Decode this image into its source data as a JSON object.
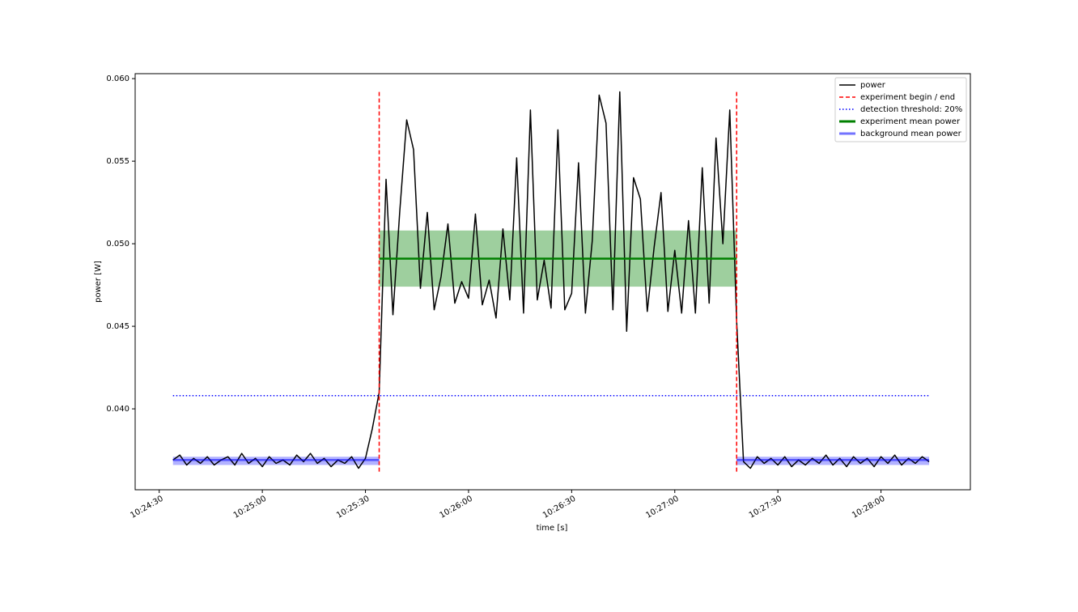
{
  "chart_data": {
    "type": "line",
    "x_label": "time [s]",
    "y_label": "power [W]",
    "xlim": [
      "10:24:23",
      "10:28:26"
    ],
    "ylim": [
      0.0351,
      0.0603
    ],
    "xticks": [
      "10:24:30",
      "10:25:00",
      "10:25:30",
      "10:26:00",
      "10:26:30",
      "10:27:00",
      "10:27:30",
      "10:28:00"
    ],
    "yticks": [
      {
        "value": 0.04,
        "label": "0.040"
      },
      0.045,
      {
        "value": 0.05,
        "label": "0.050"
      },
      0.055,
      {
        "value": 0.06,
        "label": "0.060"
      }
    ],
    "x": [
      "10:24:34",
      "10:24:36",
      "10:24:38",
      "10:24:40",
      "10:24:42",
      "10:24:44",
      "10:24:46",
      "10:24:48",
      "10:24:50",
      "10:24:52",
      "10:24:54",
      "10:24:56",
      "10:24:58",
      "10:25:00",
      "10:25:02",
      "10:25:04",
      "10:25:06",
      "10:25:08",
      "10:25:10",
      "10:25:12",
      "10:25:14",
      "10:25:16",
      "10:25:18",
      "10:25:20",
      "10:25:22",
      "10:25:24",
      "10:25:26",
      "10:25:28",
      "10:25:30",
      "10:25:32",
      "10:25:34",
      "10:25:36",
      "10:25:38",
      "10:25:40",
      "10:25:42",
      "10:25:44",
      "10:25:46",
      "10:25:48",
      "10:25:50",
      "10:25:52",
      "10:25:54",
      "10:25:56",
      "10:25:58",
      "10:26:00",
      "10:26:02",
      "10:26:04",
      "10:26:06",
      "10:26:08",
      "10:26:10",
      "10:26:12",
      "10:26:14",
      "10:26:16",
      "10:26:18",
      "10:26:20",
      "10:26:22",
      "10:26:24",
      "10:26:26",
      "10:26:28",
      "10:26:30",
      "10:26:32",
      "10:26:34",
      "10:26:36",
      "10:26:38",
      "10:26:40",
      "10:26:42",
      "10:26:44",
      "10:26:46",
      "10:26:48",
      "10:26:50",
      "10:26:52",
      "10:26:54",
      "10:26:56",
      "10:26:58",
      "10:27:00",
      "10:27:02",
      "10:27:04",
      "10:27:06",
      "10:27:08",
      "10:27:10",
      "10:27:12",
      "10:27:14",
      "10:27:16",
      "10:27:18",
      "10:27:20",
      "10:27:22",
      "10:27:24",
      "10:27:26",
      "10:27:28",
      "10:27:30",
      "10:27:32",
      "10:27:34",
      "10:27:36",
      "10:27:38",
      "10:27:40",
      "10:27:42",
      "10:27:44",
      "10:27:46",
      "10:27:48",
      "10:27:50",
      "10:27:52",
      "10:27:54",
      "10:27:56",
      "10:27:58",
      "10:28:00",
      "10:28:02",
      "10:28:04",
      "10:28:06",
      "10:28:08",
      "10:28:10",
      "10:28:12",
      "10:28:14"
    ],
    "series": [
      {
        "name": "power",
        "color": "#000000",
        "values": [
          0.0369,
          0.0372,
          0.0366,
          0.037,
          0.0367,
          0.0371,
          0.0366,
          0.0369,
          0.0371,
          0.0366,
          0.0373,
          0.0367,
          0.037,
          0.0365,
          0.0371,
          0.0367,
          0.0369,
          0.0366,
          0.0372,
          0.0368,
          0.0373,
          0.0367,
          0.037,
          0.0365,
          0.0369,
          0.0367,
          0.0371,
          0.0364,
          0.037,
          0.0388,
          0.041,
          0.0539,
          0.0457,
          0.052,
          0.0575,
          0.0557,
          0.0473,
          0.0519,
          0.046,
          0.048,
          0.0512,
          0.0464,
          0.0477,
          0.0467,
          0.0518,
          0.0463,
          0.0478,
          0.0455,
          0.0509,
          0.0466,
          0.0552,
          0.0458,
          0.0581,
          0.0466,
          0.049,
          0.0461,
          0.0569,
          0.046,
          0.047,
          0.0549,
          0.0458,
          0.0502,
          0.059,
          0.0573,
          0.046,
          0.0592,
          0.0447,
          0.054,
          0.0527,
          0.0459,
          0.0498,
          0.0531,
          0.0459,
          0.0496,
          0.0458,
          0.0514,
          0.0458,
          0.0546,
          0.0464,
          0.0564,
          0.05,
          0.0581,
          0.0453,
          0.0368,
          0.0364,
          0.0371,
          0.0367,
          0.037,
          0.0366,
          0.0371,
          0.0365,
          0.0369,
          0.0366,
          0.037,
          0.0367,
          0.0372,
          0.0366,
          0.037,
          0.0365,
          0.0371,
          0.0367,
          0.037,
          0.0365,
          0.0371,
          0.0367,
          0.0372,
          0.0366,
          0.037,
          0.0367,
          0.0371,
          0.0368
        ]
      }
    ],
    "experiment": {
      "name": "experiment begin / end",
      "color": "#ff0000",
      "begin": "10:25:34",
      "end": "10:27:18",
      "y_range": [
        0.0362,
        0.0592
      ]
    },
    "threshold": {
      "name": "detection threshold: 20%",
      "color": "#0000ff",
      "value": 0.0408
    },
    "experiment_mean": {
      "name": "experiment mean power",
      "color": "#008000",
      "value": 0.0491,
      "band": [
        0.0474,
        0.0508
      ]
    },
    "background_mean": {
      "name": "background mean power",
      "color": "#0000ff",
      "value": 0.0369,
      "band": [
        0.0366,
        0.0371
      ]
    },
    "legend": "upper right"
  }
}
